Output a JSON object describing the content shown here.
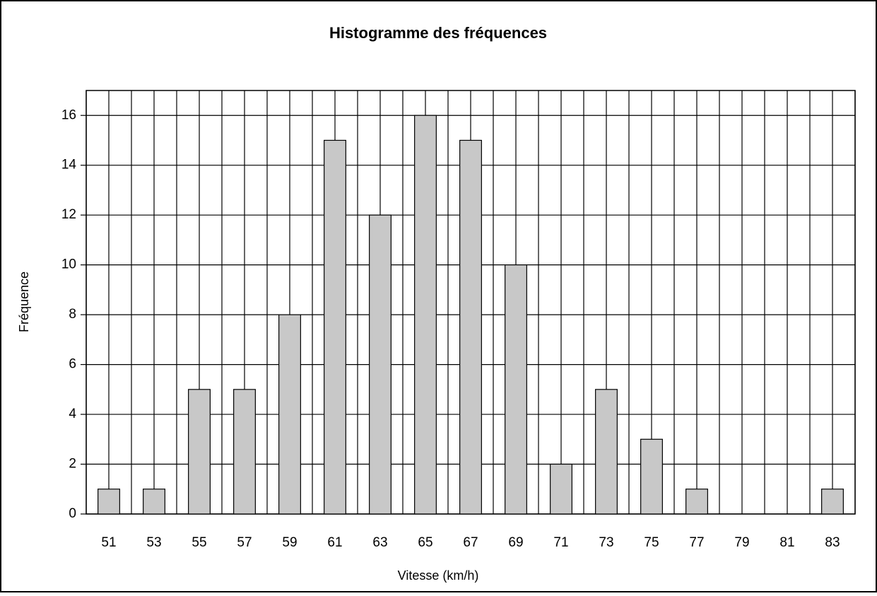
{
  "chart_data": {
    "type": "bar",
    "title": "Histogramme des fréquences",
    "x_label": "Vitesse (km/h)",
    "y_label": "Fréquence",
    "categories": [
      "51",
      "53",
      "55",
      "57",
      "59",
      "61",
      "63",
      "65",
      "67",
      "69",
      "71",
      "73",
      "75",
      "77",
      "79",
      "81",
      "83"
    ],
    "values": [
      1,
      1,
      5,
      5,
      8,
      15,
      12,
      16,
      15,
      10,
      2,
      5,
      3,
      1,
      0,
      0,
      1
    ],
    "color": "#c8c8c8",
    "ylim": [
      0,
      17
    ],
    "yticks": [
      0,
      2,
      4,
      6,
      8,
      10,
      12,
      14,
      16
    ],
    "grid": true
  }
}
